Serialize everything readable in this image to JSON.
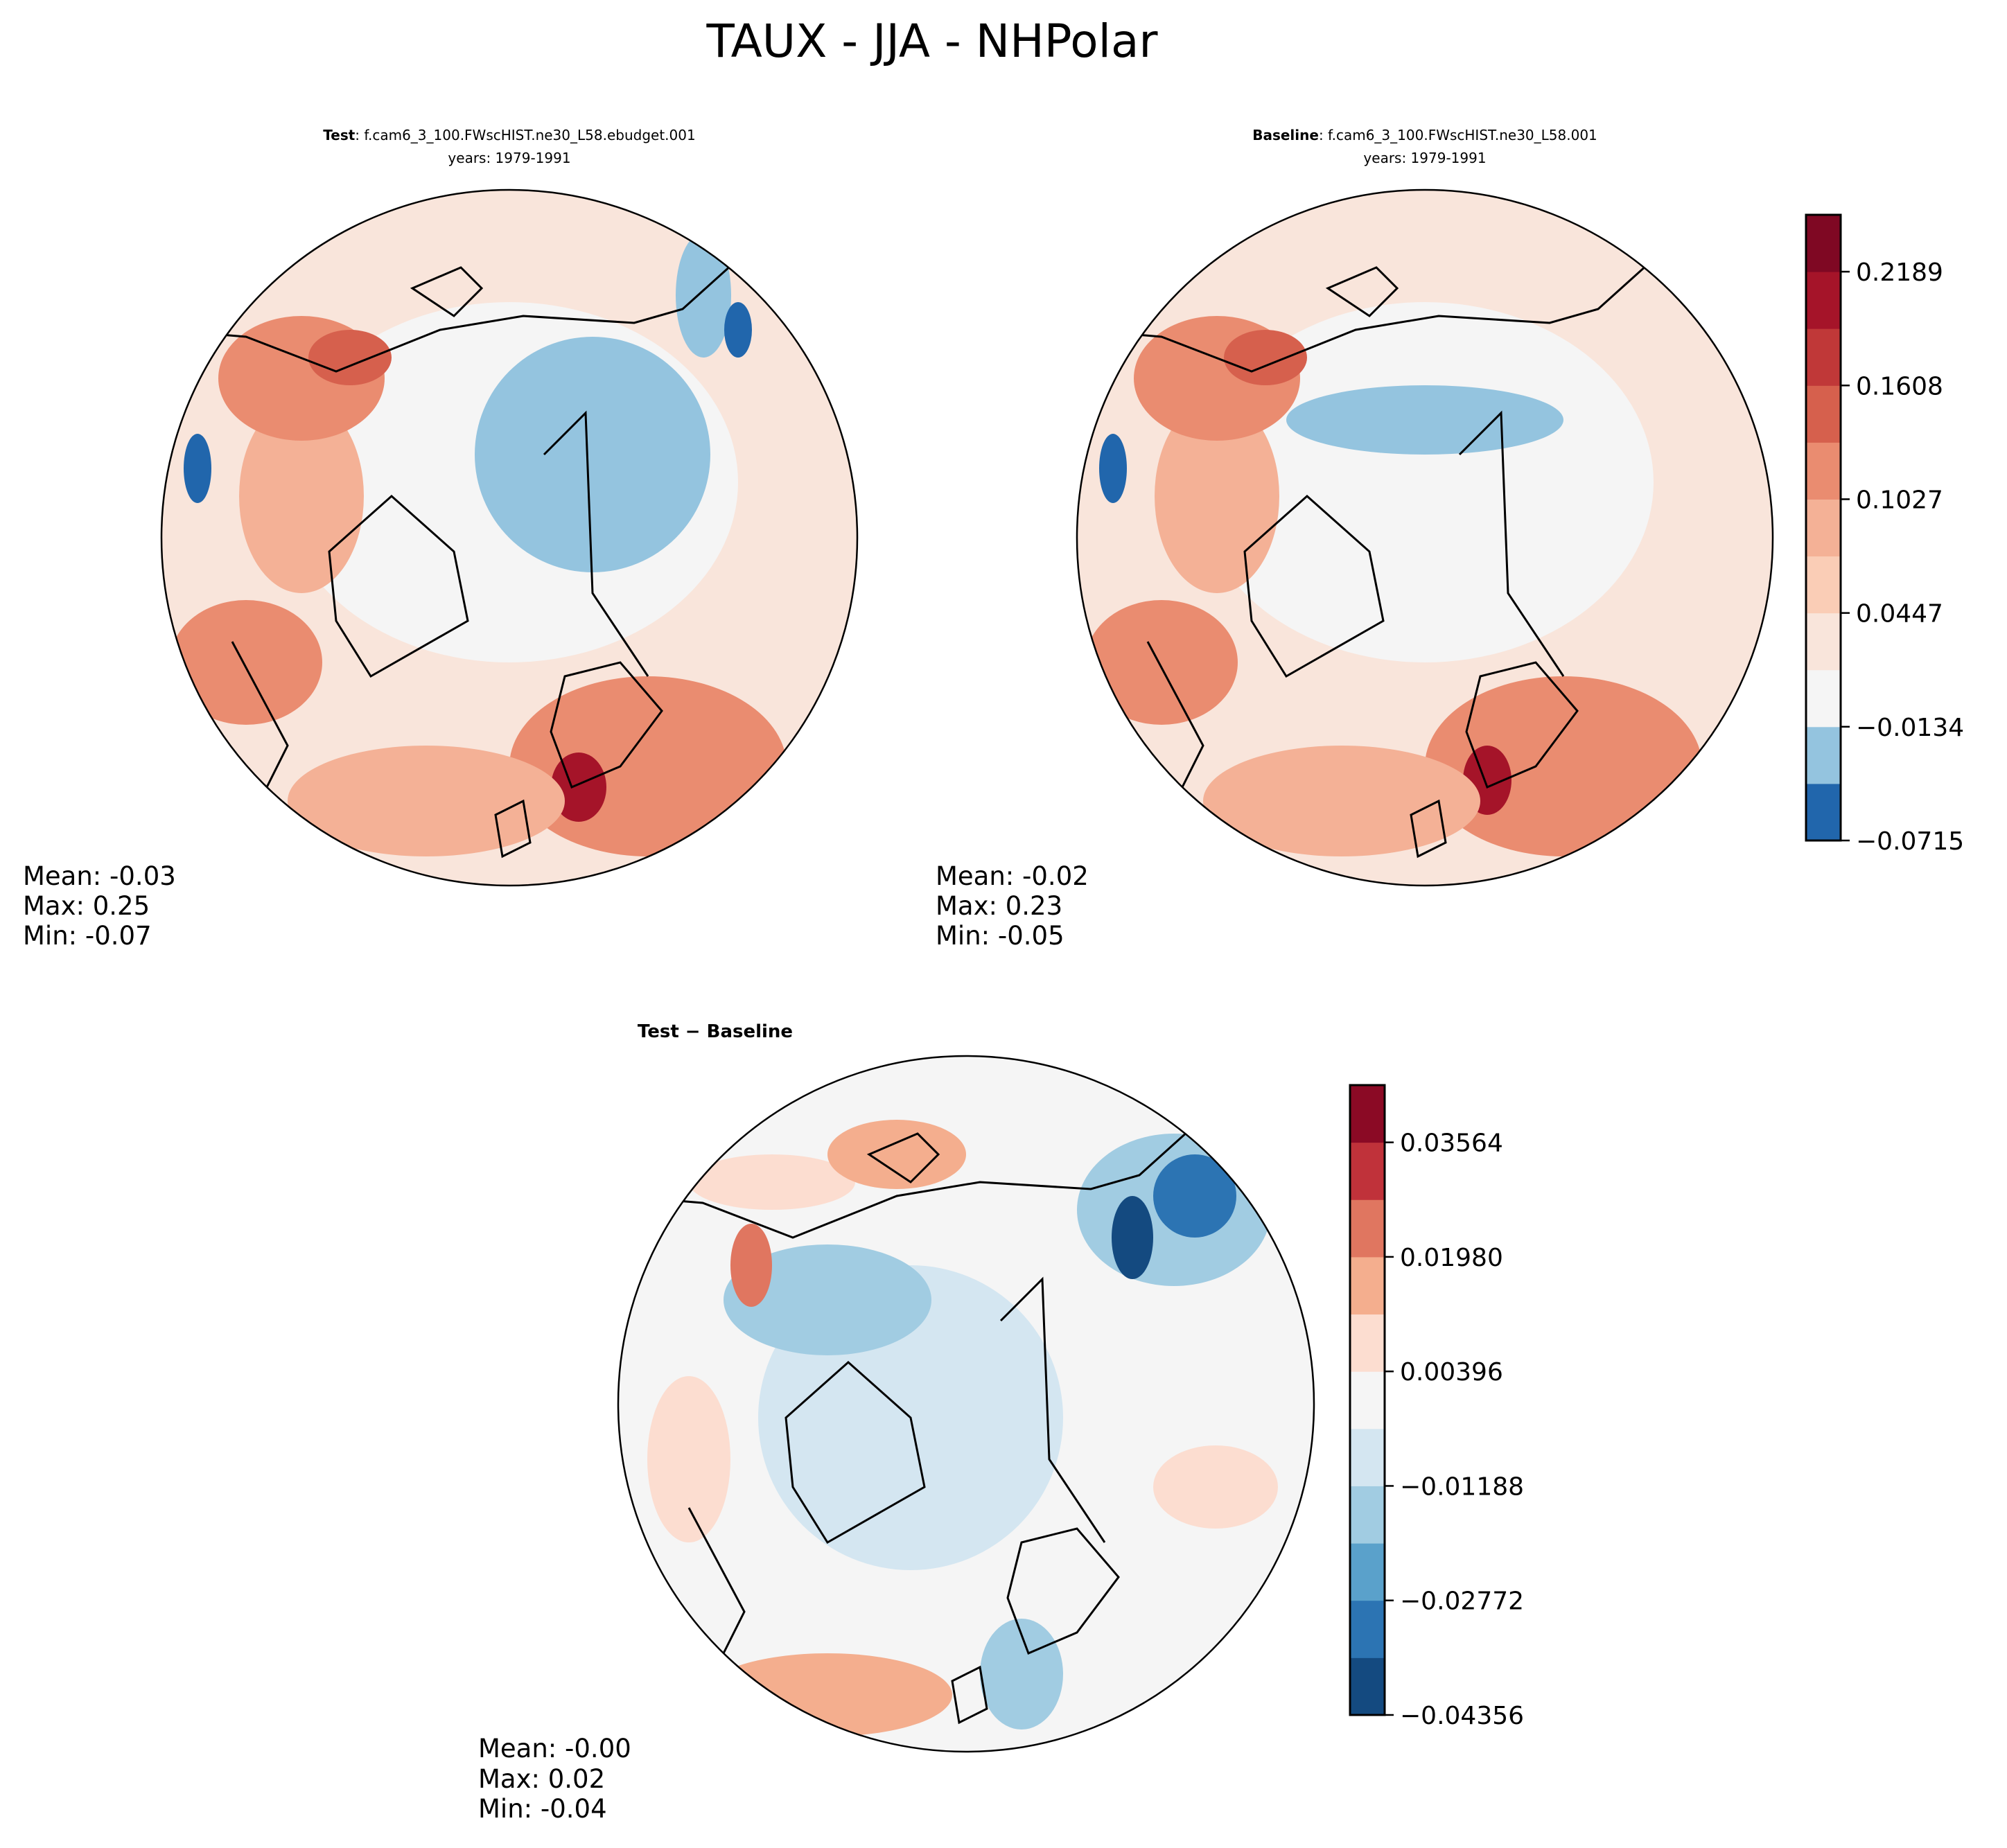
{
  "chart_data": [
    {
      "type": "heatmap",
      "title": "TAUX - JJA - NHPolar",
      "projection": "north-polar-stereographic",
      "panels": [
        {
          "id": "test",
          "title_bold": "Test",
          "title_rest": ": f.cam6_3_100.FWscHIST.ne30_L58.ebudget.001",
          "years": "years: 1979-1991",
          "stats": {
            "mean": "Mean: -0.03",
            "max": "Max:  0.25",
            "min": "Min: -0.07"
          },
          "colorbar": "main"
        },
        {
          "id": "baseline",
          "title_bold": "Baseline",
          "title_rest": ": f.cam6_3_100.FWscHIST.ne30_L58.001",
          "years": "years: 1979-1991",
          "stats": {
            "mean": "Mean: -0.02",
            "max": "Max:  0.23",
            "min": "Min: -0.05"
          },
          "colorbar": "main"
        },
        {
          "id": "diff",
          "title_bold": "Test − Baseline",
          "stats": {
            "mean": "Mean: -0.00",
            "max": "Max:  0.02",
            "min": "Min: -0.04"
          },
          "colorbar": "diff"
        }
      ],
      "colorbars": {
        "main": {
          "range": [
            -0.0715,
            0.248
          ],
          "colors": [
            "#2166ac",
            "#94c4df",
            "#f5f5f5",
            "#f9e5db",
            "#facdb6",
            "#f4b196",
            "#ea8c70",
            "#d6604d",
            "#c03838",
            "#a51429",
            "#7f0823"
          ],
          "ticks": [
            "−0.0715",
            "−0.0134",
            "0.0447",
            "0.1027",
            "0.1608",
            "0.2189"
          ]
        },
        "diff": {
          "range": [
            -0.04356,
            0.04356
          ],
          "colors": [
            "#144a80",
            "#2c74b3",
            "#5aa1cb",
            "#a1cce2",
            "#d4e6f1",
            "#f5f5f5",
            "#fcddd0",
            "#f4ae8e",
            "#e07660",
            "#c0323a",
            "#8b0a25"
          ],
          "ticks": [
            "−0.04356",
            "−0.02772",
            "−0.01188",
            "0.00396",
            "0.01980",
            "0.03564"
          ]
        }
      }
    }
  ]
}
